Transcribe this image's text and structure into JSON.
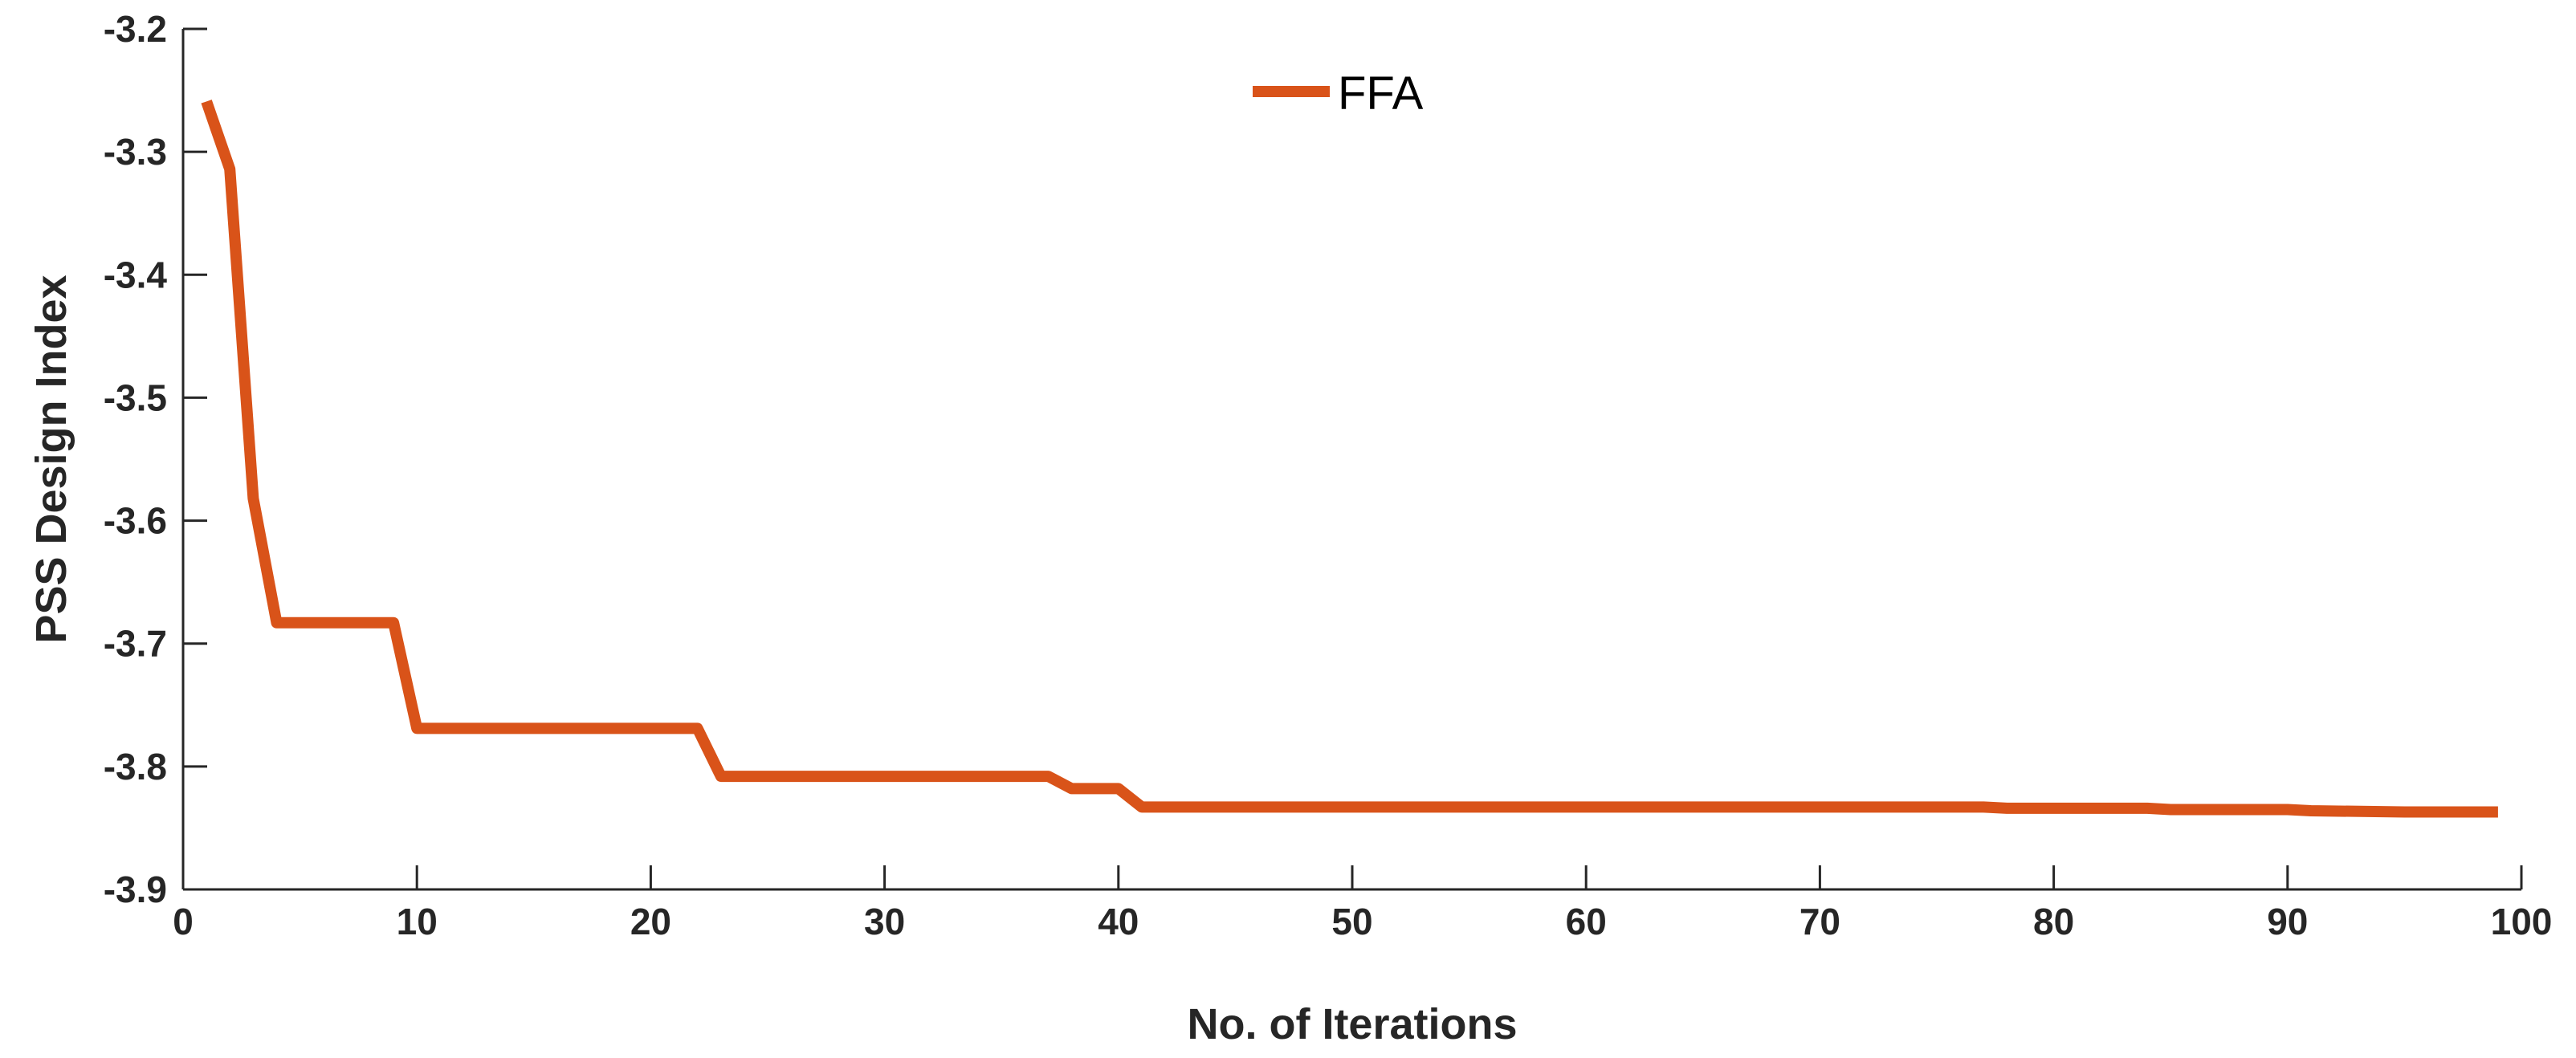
{
  "chart_data": {
    "type": "line",
    "xlabel": "No. of Iterations",
    "ylabel": "PSS Design Index",
    "xlim": [
      0,
      100
    ],
    "ylim": [
      -3.9,
      -3.2
    ],
    "xticks": [
      "0",
      "10",
      "20",
      "30",
      "40",
      "50",
      "60",
      "70",
      "80",
      "90",
      "100"
    ],
    "yticks": [
      "-3.2",
      "-3.3",
      "-3.4",
      "-3.5",
      "-3.6",
      "-3.7",
      "-3.8",
      "-3.9"
    ],
    "grid": false,
    "legend_position": "top-center",
    "series": [
      {
        "name": "FFA",
        "color": "#D95319",
        "x": [
          1,
          2,
          3,
          4,
          5,
          9,
          10,
          22,
          23,
          37,
          38,
          40,
          41,
          60,
          77,
          78,
          84,
          85,
          90,
          91,
          95,
          99
        ],
        "y": [
          -3.259,
          -3.314,
          -3.582,
          -3.683,
          -3.683,
          -3.683,
          -3.769,
          -3.769,
          -3.808,
          -3.808,
          -3.818,
          -3.818,
          -3.833,
          -3.833,
          -3.833,
          -3.834,
          -3.834,
          -3.835,
          -3.835,
          -3.836,
          -3.837,
          -3.837
        ]
      }
    ]
  }
}
